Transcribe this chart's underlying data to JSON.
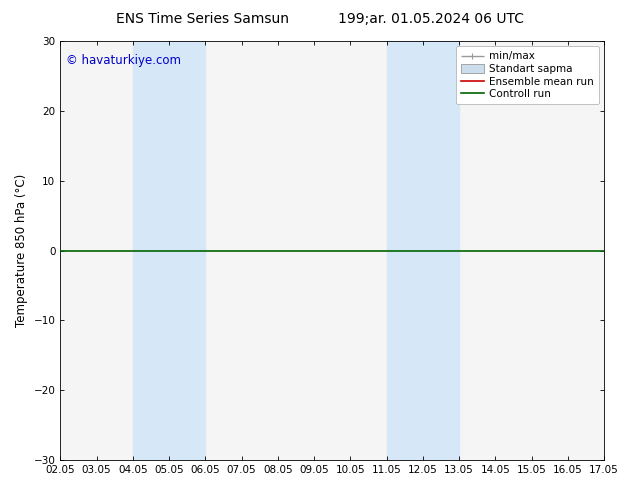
{
  "title_left": "ENS Time Series Samsun",
  "title_right": "199;ar. 01.05.2024 06 UTC",
  "ylabel": "Temperature 850 hPa (°C)",
  "ylim": [
    -30,
    30
  ],
  "yticks": [
    -30,
    -20,
    -10,
    0,
    10,
    20,
    30
  ],
  "x_labels": [
    "02.05",
    "03.05",
    "04.05",
    "05.05",
    "06.05",
    "07.05",
    "08.05",
    "09.05",
    "10.05",
    "11.05",
    "12.05",
    "13.05",
    "14.05",
    "15.05",
    "16.05",
    "17.05"
  ],
  "shaded_bands": [
    {
      "x_start": "04.05",
      "x_end": "05.05"
    },
    {
      "x_start": "05.05",
      "x_end": "06.05"
    },
    {
      "x_start": "11.05",
      "x_end": "12.05"
    },
    {
      "x_start": "12.05",
      "x_end": "13.05"
    }
  ],
  "watermark": "© havaturkiye.com",
  "legend_labels": [
    "min/max",
    "Standart sapma",
    "Ensemble mean run",
    "Controll run"
  ],
  "bg_color": "#ffffff",
  "plot_bg_color": "#f5f5f5",
  "band_color": "#d6e8f7",
  "control_line_color": "#006400",
  "ensemble_line_color": "#cc0000",
  "minmax_line_color": "#999999",
  "std_fill_color": "#ccddee",
  "title_fontsize": 10,
  "tick_fontsize": 7.5,
  "ylabel_fontsize": 8.5,
  "watermark_color": "#0000cc",
  "watermark_fontsize": 8.5,
  "legend_fontsize": 7.5
}
